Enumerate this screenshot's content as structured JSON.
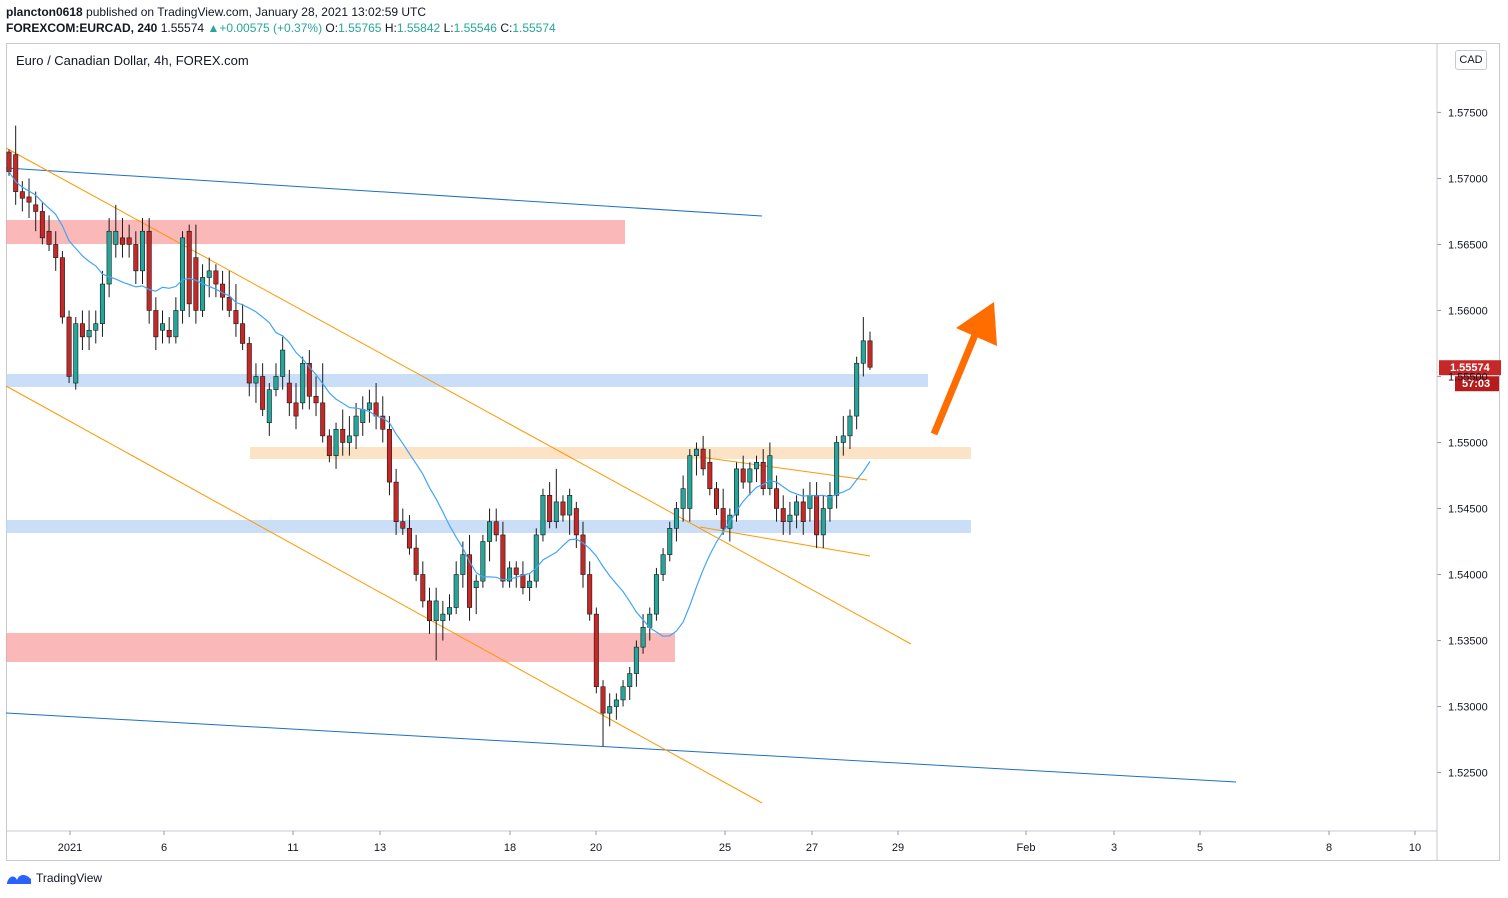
{
  "header": {
    "author": "plancton0618",
    "published_text": "published on TradingView.com, January 28, 2021 13:02:59 UTC",
    "symbol": "FOREXCOM:EURCAD, 240",
    "last": "1.55574",
    "change": "+0.00575 (+0.37%)",
    "o_label": "O:",
    "o_value": "1.55765",
    "h_label": "H:",
    "h_value": "1.55842",
    "l_label": "L:",
    "l_value": "1.55546",
    "c_label": "C:",
    "c_value": "1.55574"
  },
  "chart_title": "Euro / Canadian Dollar, 4h, FOREX.com",
  "currency_badge": "CAD",
  "price_badge": "1.55574",
  "countdown_badge": "57:03",
  "footer_brand": "TradingView",
  "colors": {
    "bull": "#26a69a",
    "bear": "#c62828",
    "ma": "#42a5f5",
    "channel_blue": "#1e6fc6",
    "channel_orange": "#ff9800",
    "zone_red": "#f8a0a0",
    "zone_blue": "#b9d3f5",
    "zone_orange": "#fcd9b3",
    "arrow": "#ff6d00"
  },
  "chart_data": {
    "type": "candlestick",
    "title": "Euro / Canadian Dollar, 4h, FOREX.com",
    "y_ticks": [
      1.575,
      1.57,
      1.565,
      1.56,
      1.555,
      1.55,
      1.545,
      1.54,
      1.535,
      1.53,
      1.525
    ],
    "y_tick_labels": [
      "1.57500",
      "1.57000",
      "1.56500",
      "1.56000",
      "1.55500",
      "1.55000",
      "1.54500",
      "1.54000",
      "1.53500",
      "1.53000",
      "1.52500"
    ],
    "ylim": [
      1.5208,
      1.5795
    ],
    "x_tick_labels": [
      "2021",
      "6",
      "11",
      "13",
      "18",
      "20",
      "25",
      "27",
      "29",
      "Feb",
      "3",
      "5",
      "8",
      "10"
    ],
    "grid": false,
    "series": [
      {
        "name": "EURCAD",
        "ohlc": [
          [
            1.572,
            1.5722,
            1.5702,
            1.5705
          ],
          [
            1.5718,
            1.574,
            1.568,
            1.569
          ],
          [
            1.569,
            1.5698,
            1.5675,
            1.5685
          ],
          [
            1.5686,
            1.57,
            1.567,
            1.5682
          ],
          [
            1.568,
            1.569,
            1.566,
            1.5675
          ],
          [
            1.5675,
            1.5682,
            1.565,
            1.5655
          ],
          [
            1.566,
            1.5672,
            1.5645,
            1.565
          ],
          [
            1.565,
            1.566,
            1.563,
            1.564
          ],
          [
            1.564,
            1.5645,
            1.559,
            1.5595
          ],
          [
            1.5595,
            1.56,
            1.5545,
            1.555
          ],
          [
            1.5545,
            1.5595,
            1.554,
            1.559
          ],
          [
            1.559,
            1.56,
            1.557,
            1.558
          ],
          [
            1.558,
            1.56,
            1.557,
            1.5585
          ],
          [
            1.5585,
            1.56,
            1.5575,
            1.559
          ],
          [
            1.559,
            1.563,
            1.558,
            1.562
          ],
          [
            1.562,
            1.567,
            1.561,
            1.566
          ],
          [
            1.565,
            1.568,
            1.564,
            1.566
          ],
          [
            1.5655,
            1.567,
            1.564,
            1.565
          ],
          [
            1.5655,
            1.5665,
            1.564,
            1.565
          ],
          [
            1.565,
            1.566,
            1.562,
            1.563
          ],
          [
            1.563,
            1.567,
            1.562,
            1.566
          ],
          [
            1.566,
            1.567,
            1.559,
            1.56
          ],
          [
            1.56,
            1.561,
            1.557,
            1.558
          ],
          [
            1.5585,
            1.56,
            1.5575,
            1.559
          ],
          [
            1.5585,
            1.5595,
            1.5575,
            1.558
          ],
          [
            1.558,
            1.561,
            1.5575,
            1.56
          ],
          [
            1.56,
            1.566,
            1.559,
            1.5655
          ],
          [
            1.566,
            1.5665,
            1.5595,
            1.5605
          ],
          [
            1.564,
            1.5665,
            1.559,
            1.56
          ],
          [
            1.56,
            1.5635,
            1.5595,
            1.5625
          ],
          [
            1.5625,
            1.564,
            1.561,
            1.563
          ],
          [
            1.563,
            1.5635,
            1.561,
            1.562
          ],
          [
            1.562,
            1.563,
            1.56,
            1.561
          ],
          [
            1.561,
            1.563,
            1.5595,
            1.56
          ],
          [
            1.56,
            1.562,
            1.558,
            1.559
          ],
          [
            1.559,
            1.5605,
            1.557,
            1.5575
          ],
          [
            1.5575,
            1.558,
            1.5535,
            1.5545
          ],
          [
            1.5545,
            1.556,
            1.553,
            1.555
          ],
          [
            1.555,
            1.556,
            1.552,
            1.5525
          ],
          [
            1.5515,
            1.5545,
            1.5505,
            1.554
          ],
          [
            1.554,
            1.556,
            1.5535,
            1.555
          ],
          [
            1.555,
            1.558,
            1.554,
            1.557
          ],
          [
            1.5545,
            1.5555,
            1.552,
            1.553
          ],
          [
            1.553,
            1.5545,
            1.551,
            1.552
          ],
          [
            1.553,
            1.5565,
            1.5525,
            1.556
          ],
          [
            1.556,
            1.557,
            1.5525,
            1.5535
          ],
          [
            1.5535,
            1.555,
            1.552,
            1.553
          ],
          [
            1.553,
            1.556,
            1.55,
            1.5505
          ],
          [
            1.5505,
            1.551,
            1.5485,
            1.549
          ],
          [
            1.549,
            1.5515,
            1.548,
            1.551
          ],
          [
            1.551,
            1.5525,
            1.549,
            1.55
          ],
          [
            1.55,
            1.552,
            1.549,
            1.5505
          ],
          [
            1.5505,
            1.553,
            1.5495,
            1.552
          ],
          [
            1.5515,
            1.5535,
            1.5505,
            1.5525
          ],
          [
            1.5525,
            1.554,
            1.5515,
            1.553
          ],
          [
            1.553,
            1.5545,
            1.551,
            1.552
          ],
          [
            1.552,
            1.5535,
            1.55,
            1.551
          ],
          [
            1.551,
            1.552,
            1.546,
            1.547
          ],
          [
            1.547,
            1.548,
            1.543,
            1.544
          ],
          [
            1.544,
            1.545,
            1.543,
            1.5435
          ],
          [
            1.5435,
            1.5445,
            1.5415,
            1.542
          ],
          [
            1.542,
            1.543,
            1.5395,
            1.54
          ],
          [
            1.54,
            1.541,
            1.5375,
            1.538
          ],
          [
            1.538,
            1.539,
            1.5355,
            1.5365
          ],
          [
            1.5365,
            1.539,
            1.5335,
            1.538
          ],
          [
            1.5365,
            1.538,
            1.535,
            1.537
          ],
          [
            1.537,
            1.5385,
            1.5365,
            1.5375
          ],
          [
            1.5375,
            1.541,
            1.537,
            1.54
          ],
          [
            1.54,
            1.5425,
            1.539,
            1.5415
          ],
          [
            1.5415,
            1.543,
            1.5365,
            1.5375
          ],
          [
            1.539,
            1.54,
            1.537,
            1.5395
          ],
          [
            1.5395,
            1.543,
            1.539,
            1.5425
          ],
          [
            1.5425,
            1.545,
            1.541,
            1.544
          ],
          [
            1.544,
            1.545,
            1.5425,
            1.543
          ],
          [
            1.543,
            1.544,
            1.539,
            1.5395
          ],
          [
            1.5395,
            1.541,
            1.539,
            1.5405
          ],
          [
            1.5405,
            1.541,
            1.539,
            1.54
          ],
          [
            1.54,
            1.541,
            1.5385,
            1.539
          ],
          [
            1.539,
            1.54,
            1.538,
            1.5395
          ],
          [
            1.5395,
            1.5435,
            1.539,
            1.543
          ],
          [
            1.543,
            1.5465,
            1.5425,
            1.546
          ],
          [
            1.546,
            1.547,
            1.5435,
            1.544
          ],
          [
            1.544,
            1.548,
            1.5435,
            1.5455
          ],
          [
            1.5455,
            1.546,
            1.544,
            1.5445
          ],
          [
            1.5445,
            1.5465,
            1.543,
            1.546
          ],
          [
            1.545,
            1.5455,
            1.542,
            1.543
          ],
          [
            1.543,
            1.544,
            1.539,
            1.54
          ],
          [
            1.54,
            1.541,
            1.5365,
            1.537
          ],
          [
            1.537,
            1.5375,
            1.531,
            1.5315
          ],
          [
            1.5315,
            1.532,
            1.527,
            1.5295
          ],
          [
            1.5295,
            1.531,
            1.5285,
            1.53
          ],
          [
            1.53,
            1.531,
            1.529,
            1.5305
          ],
          [
            1.5305,
            1.532,
            1.53,
            1.5315
          ],
          [
            1.5315,
            1.533,
            1.5305,
            1.5325
          ],
          [
            1.5325,
            1.535,
            1.5315,
            1.5345
          ],
          [
            1.5345,
            1.537,
            1.534,
            1.536
          ],
          [
            1.536,
            1.5375,
            1.535,
            1.537
          ],
          [
            1.537,
            1.5405,
            1.5365,
            1.54
          ],
          [
            1.54,
            1.542,
            1.5395,
            1.5415
          ],
          [
            1.5415,
            1.544,
            1.541,
            1.5435
          ],
          [
            1.5435,
            1.5455,
            1.5425,
            1.545
          ],
          [
            1.545,
            1.5475,
            1.544,
            1.5465
          ],
          [
            1.545,
            1.5495,
            1.544,
            1.549
          ],
          [
            1.549,
            1.55,
            1.5475,
            1.5495
          ],
          [
            1.5495,
            1.5505,
            1.5475,
            1.548
          ],
          [
            1.5485,
            1.5495,
            1.546,
            1.5465
          ],
          [
            1.5465,
            1.547,
            1.5445,
            1.545
          ],
          [
            1.545,
            1.5465,
            1.543,
            1.5435
          ],
          [
            1.5435,
            1.545,
            1.5425,
            1.5445
          ],
          [
            1.5445,
            1.5485,
            1.544,
            1.548
          ],
          [
            1.548,
            1.549,
            1.5465,
            1.547
          ],
          [
            1.547,
            1.5485,
            1.546,
            1.548
          ],
          [
            1.548,
            1.549,
            1.547,
            1.5485
          ],
          [
            1.5485,
            1.5495,
            1.546,
            1.5465
          ],
          [
            1.5465,
            1.55,
            1.546,
            1.549
          ],
          [
            1.5465,
            1.5475,
            1.544,
            1.545
          ],
          [
            1.545,
            1.546,
            1.543,
            1.544
          ],
          [
            1.544,
            1.5455,
            1.543,
            1.5445
          ],
          [
            1.5445,
            1.546,
            1.5435,
            1.5455
          ],
          [
            1.5455,
            1.5465,
            1.543,
            1.544
          ],
          [
            1.545,
            1.547,
            1.544,
            1.546
          ],
          [
            1.546,
            1.547,
            1.542,
            1.543
          ],
          [
            1.543,
            1.546,
            1.542,
            1.545
          ],
          [
            1.545,
            1.547,
            1.544,
            1.546
          ],
          [
            1.546,
            1.5505,
            1.545,
            1.55
          ],
          [
            1.55,
            1.552,
            1.549,
            1.5505
          ],
          [
            1.5505,
            1.5525,
            1.5495,
            1.552
          ],
          [
            1.552,
            1.5565,
            1.551,
            1.556
          ],
          [
            1.556,
            1.5595,
            1.555,
            1.5577
          ],
          [
            1.5577,
            1.5584,
            1.5555,
            1.5557
          ]
        ]
      },
      {
        "name": "MA",
        "values": []
      }
    ]
  }
}
